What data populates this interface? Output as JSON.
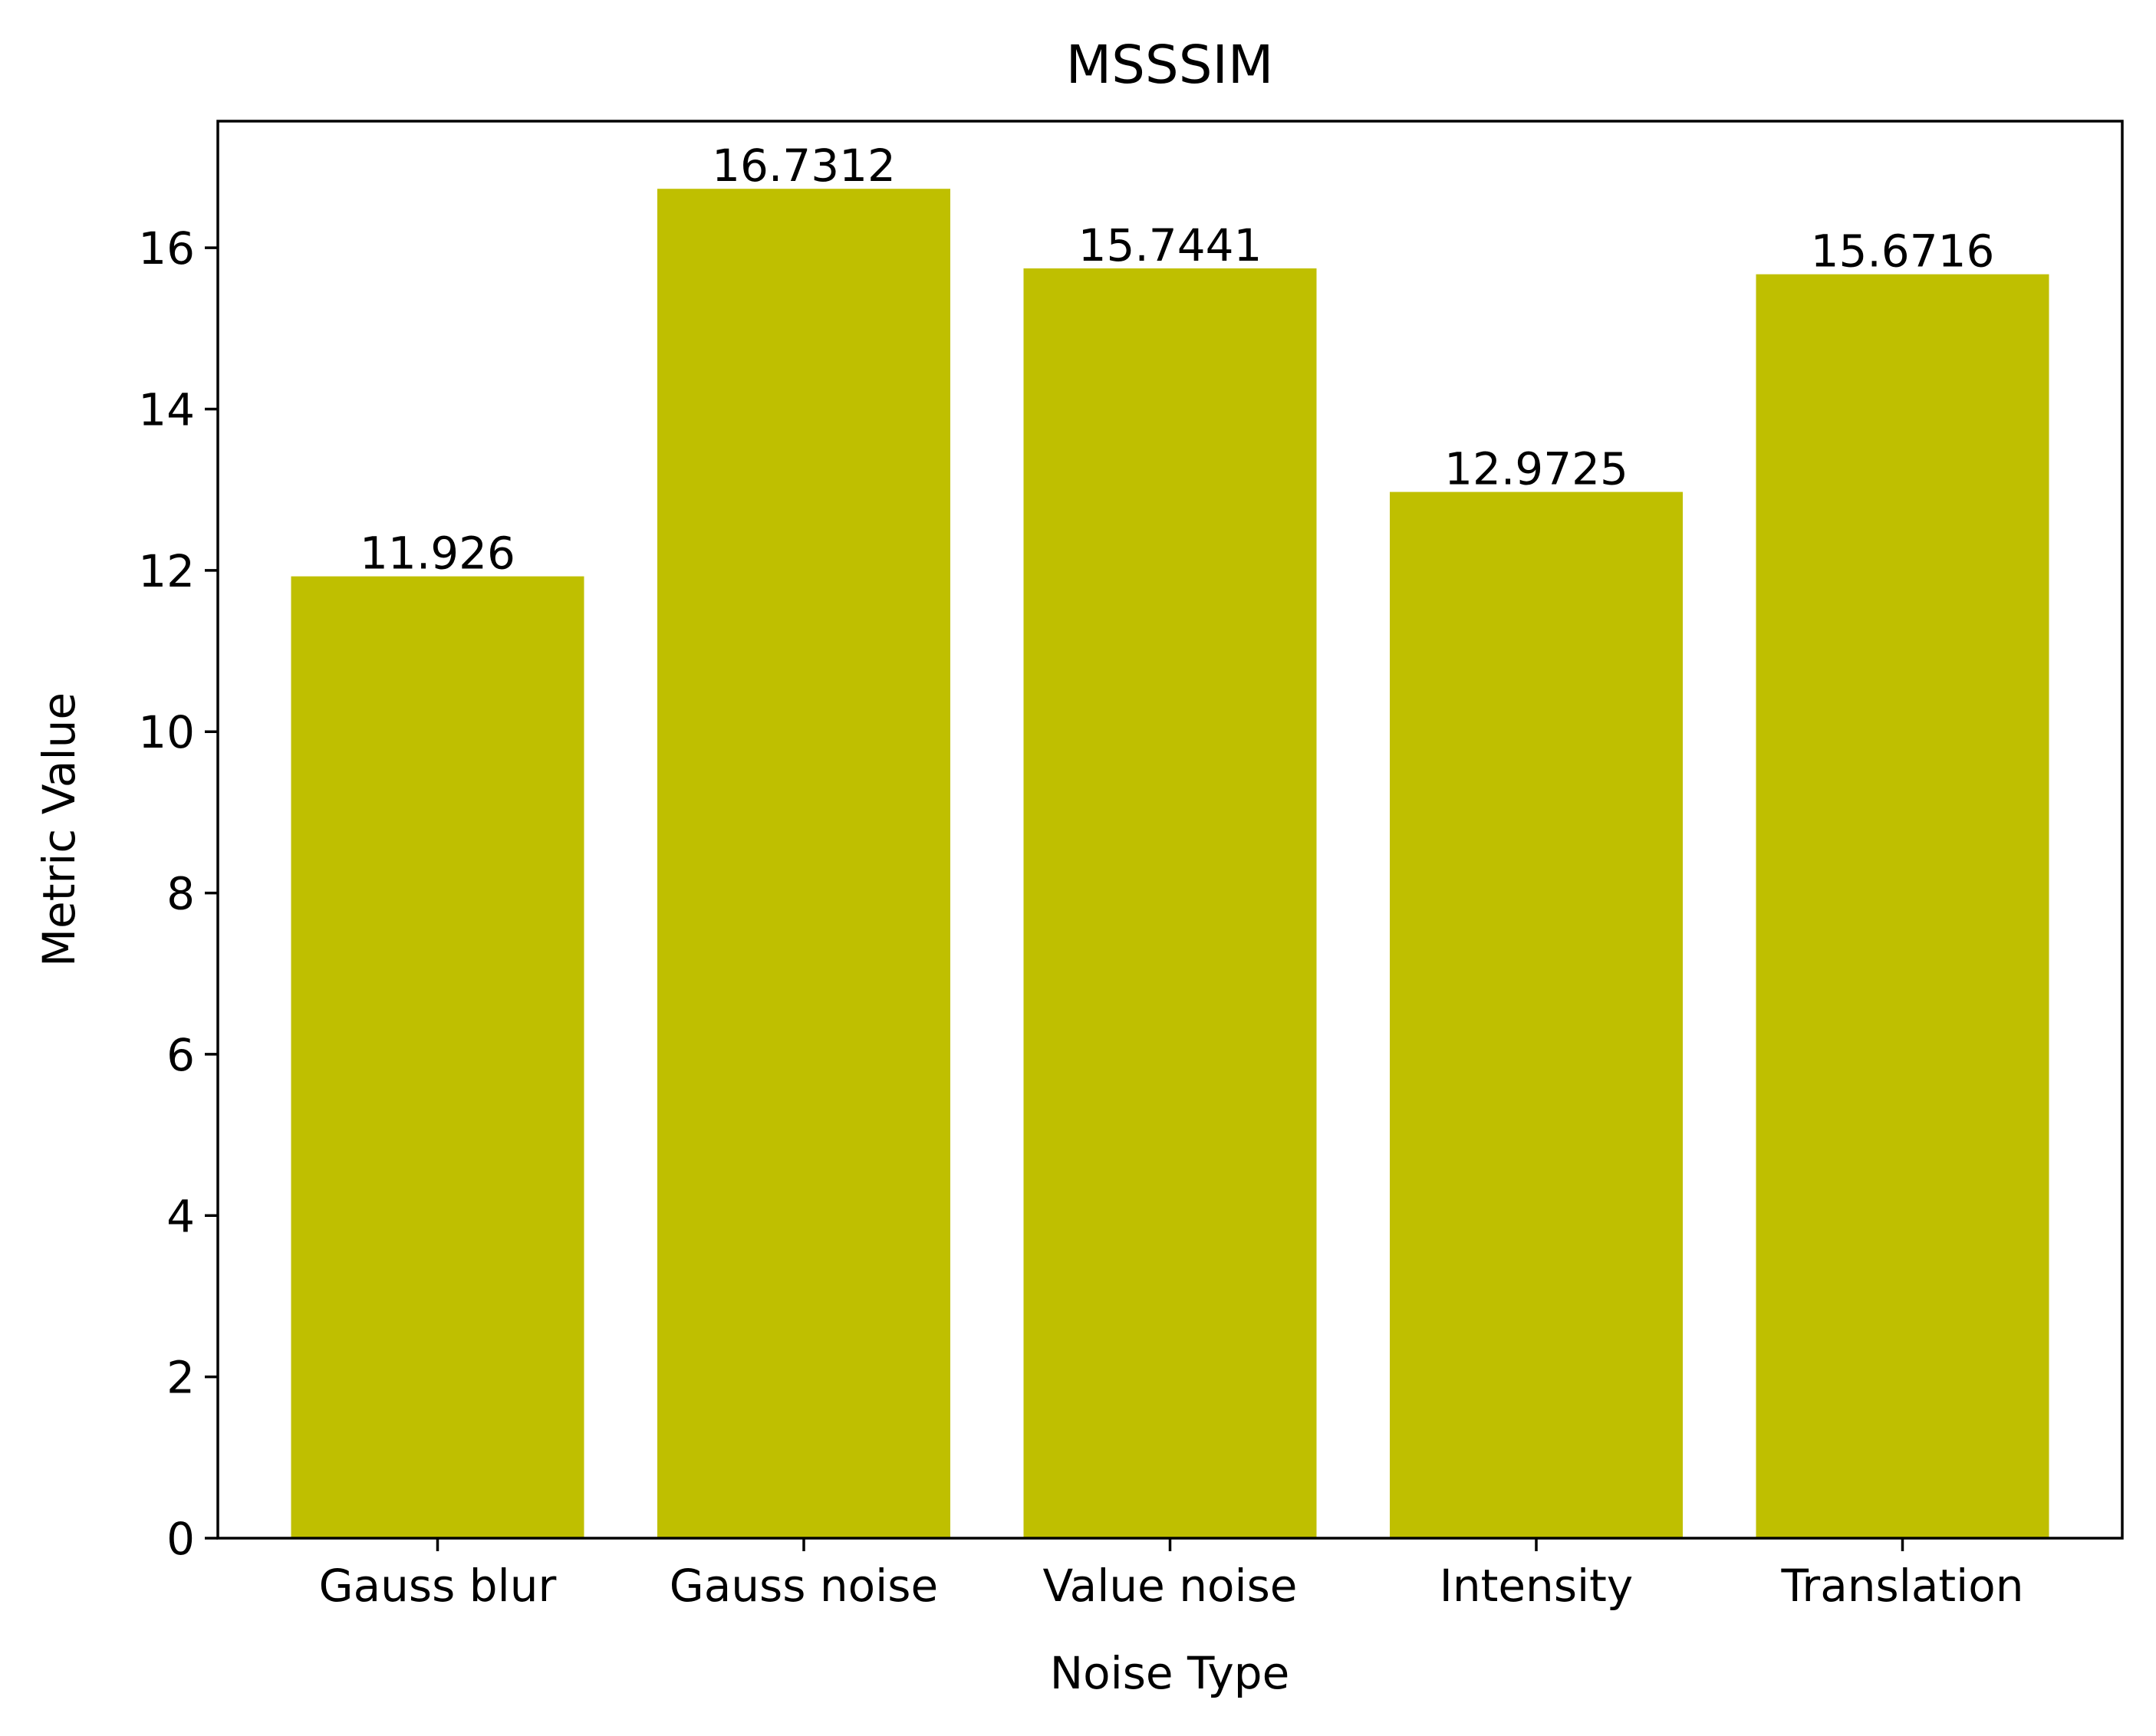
{
  "chart_data": {
    "type": "bar",
    "title": "MSSSIM",
    "xlabel": "Noise Type",
    "ylabel": "Metric Value",
    "categories": [
      "Gauss blur",
      "Gauss noise",
      "Value noise",
      "Intensity",
      "Translation"
    ],
    "values": [
      11.926,
      16.7312,
      15.7441,
      12.9725,
      15.6716
    ],
    "value_labels": [
      "11.926",
      "16.7312",
      "15.7441",
      "12.9725",
      "15.6716"
    ],
    "ylim": [
      0,
      17.57
    ],
    "yticks": [
      0,
      2,
      4,
      6,
      8,
      10,
      12,
      14,
      16
    ],
    "bar_color": "#bfbf00",
    "grid": false,
    "legend": "none"
  }
}
